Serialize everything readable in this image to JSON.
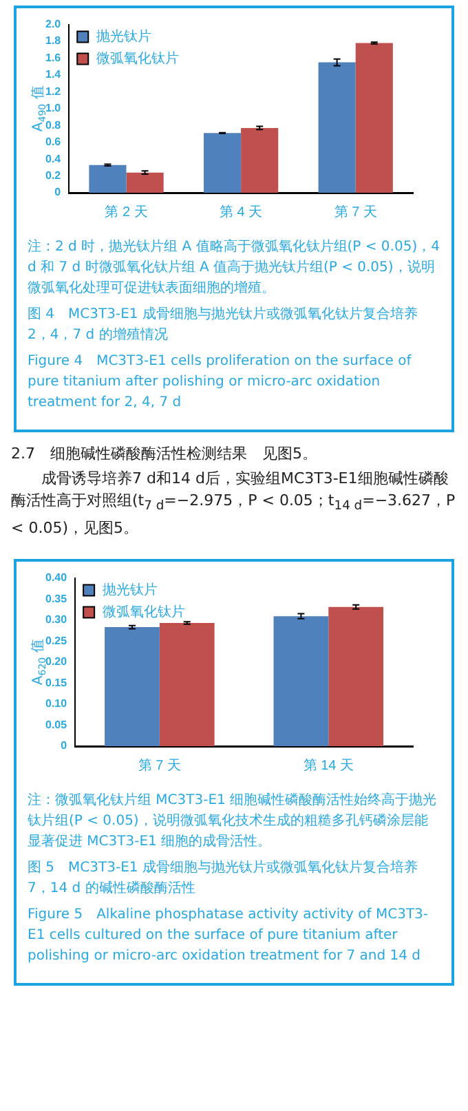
{
  "chart_data": [
    {
      "type": "bar",
      "categories": [
        "第 2 天",
        "第 4 天",
        "第 7 天"
      ],
      "ylabel": "A$_{490}$ 值",
      "ylim": [
        0,
        2.0
      ],
      "yticks": [
        0,
        {
          "value": 0.2,
          "label": "0.2"
        },
        {
          "value": 0.4,
          "label": "0.4"
        },
        {
          "value": 0.6,
          "label": "0.6"
        },
        {
          "value": 0.8,
          "label": "0.8"
        },
        {
          "value": 1.0,
          "label": "1.0"
        },
        {
          "value": 1.2,
          "label": "1.2"
        },
        {
          "value": 1.4,
          "label": "1.4"
        },
        {
          "value": 1.6,
          "label": "1.6"
        },
        {
          "value": 1.8,
          "label": "1.8"
        },
        {
          "value": 2.0,
          "label": "2.0"
        }
      ],
      "legend": "top left",
      "series": [
        {
          "name": "抛光钛片",
          "color": "#4f81bd",
          "values": [
            0.33,
            0.71,
            1.55
          ],
          "errors": [
            0.01,
            0.005,
            0.04
          ]
        },
        {
          "name": "微弧氧化钛片",
          "color": "#c0504d",
          "values": [
            0.24,
            0.77,
            1.78
          ],
          "errors": [
            0.02,
            0.02,
            0.01
          ]
        }
      ],
      "annotations": [
        "注：2 d 时，抛光钛片组 A 值略高于微弧氧化钛片组(P < 0.05)，4 d 和 7 d 时微弧氧化钛片组 A 值高于抛光钛片组(P < 0.05)，说明微弧氧化处理可促进钛表面细胞的增殖。",
        "图 4　MC3T3-E1 成骨细胞与抛光钛片或微弧氧化钛片复合培养 2，4，7 d 的增殖情况",
        "Figure 4　MC3T3-E1 cells proliferation on the surface of pure titanium after polishing or micro-arc oxidation treatment for 2, 4, 7 d"
      ]
    },
    {
      "type": "other",
      "annotations": [
        "2.7　细胞碱性磷酸酶活性检测结果　见图5。",
        "成骨诱导培养7 d和14 d后，实验组MC3T3-E1细胞碱性磷酸酶活性高于对照组(t$_{7 d}$=−2.975，P < 0.05；t$_{14 d}$=−3.627，P < 0.05)，见图5。"
      ]
    },
    {
      "type": "bar",
      "categories": [
        "第 7 天",
        "第 14 天"
      ],
      "ylabel": "A$_{620}$ 值",
      "ylim": [
        0,
        0.4
      ],
      "yticks": [
        0,
        {
          "value": 0.05,
          "label": "0.05"
        },
        {
          "value": 0.1,
          "label": "0.10"
        },
        {
          "value": 0.15,
          "label": "0.15"
        },
        {
          "value": 0.2,
          "label": "0.20"
        },
        {
          "value": 0.25,
          "label": "0.25"
        },
        {
          "value": 0.3,
          "label": "0.30"
        },
        {
          "value": 0.35,
          "label": "0.35"
        },
        {
          "value": 0.4,
          "label": "0.40"
        }
      ],
      "legend": "top left",
      "series": [
        {
          "name": "抛光钛片",
          "color": "#4f81bd",
          "values": [
            0.283,
            0.309
          ],
          "errors": [
            0.004,
            0.006
          ]
        },
        {
          "name": "微弧氧化钛片",
          "color": "#c0504d",
          "values": [
            0.293,
            0.331
          ],
          "errors": [
            0.003,
            0.005
          ]
        }
      ],
      "annotations": [
        "注：微弧氧化钛片组 MC3T3-E1 细胞碱性磷酸酶活性始终高于抛光钛片组(P < 0.05)，说明微弧氧化技术生成的粗糙多孔钙磷涂层能显著促进 MC3T3-E1 细胞的成骨活性。",
        "图 5　MC3T3-E1 成骨细胞与抛光钛片或微弧氧化钛片复合培养 7，14 d 的碱性磷酸酶活性",
        "Figure 5　Alkaline phosphatase activity activity of MC3T3-E1 cells cultured on the surface of pure titanium after polishing or micro-arc oxidation treatment for 7 and 14 d"
      ]
    }
  ]
}
